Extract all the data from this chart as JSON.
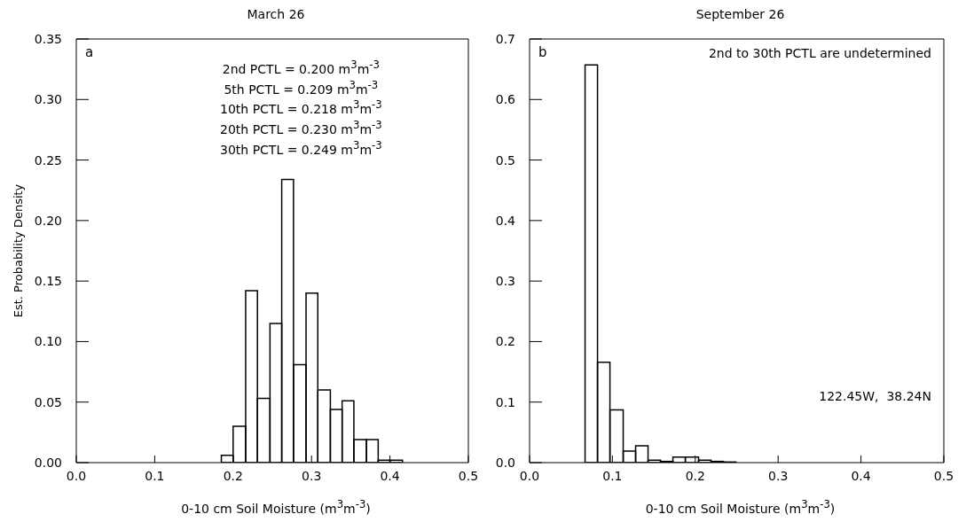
{
  "chart_data": [
    {
      "type": "histogram",
      "title": "March 26",
      "xlabel": "0-10 cm Soil Moisture (m$^{3}$m$^{-3}$)",
      "ylabel": "Est. Probability Density",
      "bins": [
        0.185,
        0.2,
        0.216,
        0.231,
        0.247,
        0.262,
        0.277,
        0.293,
        0.308,
        0.324,
        0.339,
        0.354,
        0.37,
        0.385,
        0.4,
        0.416
      ],
      "values": [
        0.006,
        0.03,
        0.142,
        0.053,
        0.115,
        0.234,
        0.081,
        0.14,
        0.06,
        0.044,
        0.051,
        0.019,
        0.019,
        0.002,
        0.002
      ],
      "color": "#000000",
      "xlim": [
        0,
        0.5
      ],
      "xticks": [
        {
          "value": 0,
          "label": "0.0"
        },
        {
          "value": 0.1,
          "label": "0.1"
        },
        {
          "value": 0.2,
          "label": "0.2"
        },
        {
          "value": 0.3,
          "label": "0.3"
        },
        {
          "value": 0.4,
          "label": "0.4"
        },
        {
          "value": 0.5,
          "label": "0.5"
        }
      ],
      "ylim": [
        0,
        0.35
      ],
      "yticks": [
        {
          "value": 0,
          "label": "0.00"
        },
        {
          "value": 0.05,
          "label": "0.05"
        },
        {
          "value": 0.1,
          "label": "0.10"
        },
        {
          "value": 0.15,
          "label": "0.15"
        },
        {
          "value": 0.2,
          "label": "0.20"
        },
        {
          "value": 0.25,
          "label": "0.25"
        },
        {
          "value": 0.3,
          "label": "0.30"
        },
        {
          "value": 0.35,
          "label": "0.35"
        }
      ],
      "grid": false,
      "annotations": [
        "a",
        "2nd PCTL = 0.200 m$^{3}$m$^{-3}$",
        "5th PCTL = 0.209 m$^{3}$m$^{-3}$",
        "10th PCTL = 0.218 m$^{3}$m$^{-3}$",
        "20th PCTL = 0.230 m$^{3}$m$^{-3}$",
        "30th PCTL = 0.249 m$^{3}$m$^{-3}$"
      ]
    },
    {
      "type": "histogram",
      "title": "September 26",
      "xlabel": "0-10 cm Soil Moisture (m$^{3}$m$^{-3}$)",
      "bins": [
        0.067,
        0.082,
        0.097,
        0.113,
        0.128,
        0.143,
        0.158,
        0.173,
        0.188,
        0.204,
        0.219,
        0.234,
        0.249
      ],
      "values": [
        0.657,
        0.166,
        0.087,
        0.019,
        0.028,
        0.004,
        0.002,
        0.009,
        0.009,
        0.004,
        0.002,
        0.001
      ],
      "color": "#000000",
      "xlim": [
        0,
        0.5
      ],
      "xticks": [
        {
          "value": 0,
          "label": "0.0"
        },
        {
          "value": 0.1,
          "label": "0.1"
        },
        {
          "value": 0.2,
          "label": "0.2"
        },
        {
          "value": 0.3,
          "label": "0.3"
        },
        {
          "value": 0.4,
          "label": "0.4"
        },
        {
          "value": 0.5,
          "label": "0.5"
        }
      ],
      "ylim": [
        0,
        0.7
      ],
      "yticks": [
        {
          "value": 0,
          "label": "0.0"
        },
        {
          "value": 0.1,
          "label": "0.1"
        },
        {
          "value": 0.2,
          "label": "0.2"
        },
        {
          "value": 0.3,
          "label": "0.3"
        },
        {
          "value": 0.4,
          "label": "0.4"
        },
        {
          "value": 0.5,
          "label": "0.5"
        },
        {
          "value": 0.6,
          "label": "0.6"
        },
        {
          "value": 0.7,
          "label": "0.7"
        }
      ],
      "grid": false,
      "annotations": [
        "b",
        "2nd to 30th PCTL are undetermined",
        "122.45W,  38.24N"
      ]
    }
  ]
}
